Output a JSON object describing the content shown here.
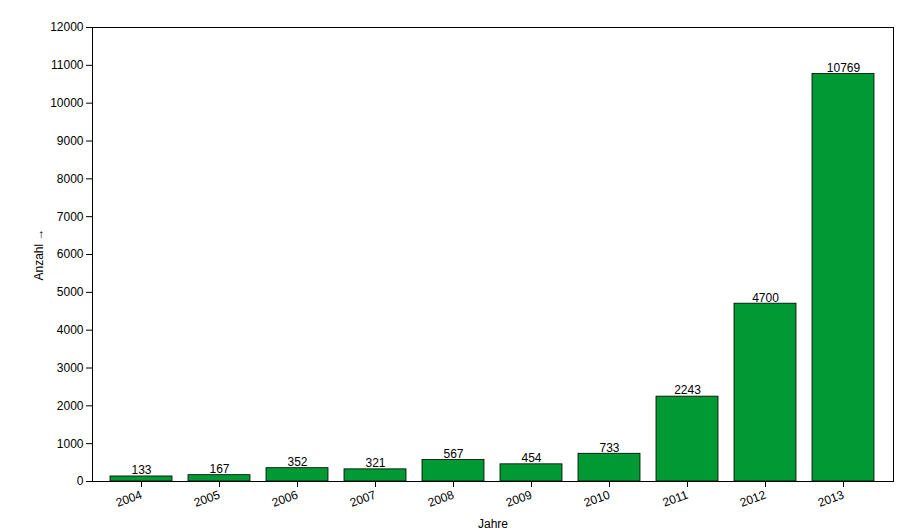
{
  "chart_data": {
    "type": "bar",
    "x_label": "Jahre",
    "y_label": "Anzahl",
    "categories": [
      "2004",
      "2005",
      "2006",
      "2007",
      "2008",
      "2009",
      "2010",
      "2011",
      "2012",
      "2013"
    ],
    "values": [
      133,
      167,
      352,
      321,
      567,
      454,
      733,
      2243,
      4700,
      10769
    ],
    "color": "#009933",
    "ylim": [
      0,
      12000
    ],
    "yticks": [
      0,
      1000,
      2000,
      3000,
      4000,
      5000,
      6000,
      7000,
      8000,
      9000,
      10000,
      11000,
      12000
    ],
    "grid": false,
    "data_labels": true
  }
}
